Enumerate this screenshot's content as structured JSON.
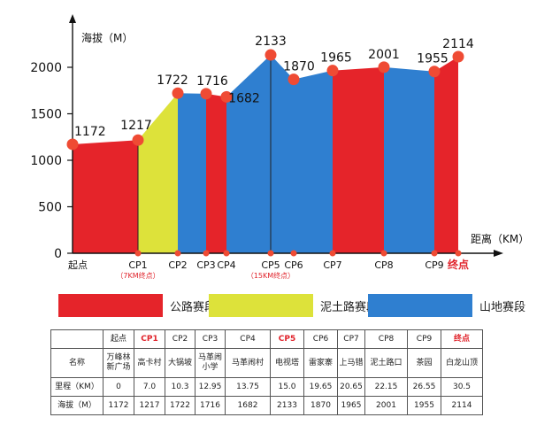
{
  "chart_data": {
    "type": "area",
    "ylabel": "海拔（M）",
    "xlabel": "距离（KM）",
    "ylim": [
      0,
      2300
    ],
    "yticks": [
      0,
      500,
      1000,
      1500,
      2000
    ],
    "points": [
      {
        "label": "起点",
        "km": 0,
        "alt": 1172,
        "hi": false,
        "note": ""
      },
      {
        "label": "CP1",
        "km": 7.0,
        "alt": 1217,
        "hi": false,
        "note": "（7KM终点）"
      },
      {
        "label": "CP2",
        "km": 10.3,
        "alt": 1722,
        "hi": false,
        "note": ""
      },
      {
        "label": "CP3",
        "km": 12.95,
        "alt": 1716,
        "hi": false,
        "note": ""
      },
      {
        "label": "CP4",
        "km": 13.75,
        "alt": 1682,
        "hi": false,
        "note": ""
      },
      {
        "label": "CP5",
        "km": 15.0,
        "alt": 2133,
        "hi": false,
        "note": "（15KM终点）"
      },
      {
        "label": "CP6",
        "km": 19.65,
        "alt": 1870,
        "hi": false,
        "note": ""
      },
      {
        "label": "CP7",
        "km": 20.65,
        "alt": 1965,
        "hi": false,
        "note": ""
      },
      {
        "label": "CP8",
        "km": 22.15,
        "alt": 2001,
        "hi": false,
        "note": ""
      },
      {
        "label": "CP9",
        "km": 26.55,
        "alt": 1955,
        "hi": false,
        "note": ""
      },
      {
        "label": "终点",
        "km": 30.5,
        "alt": 2114,
        "hi": true,
        "note": ""
      }
    ],
    "segments": [
      {
        "from": 0,
        "to": 1,
        "type": 0
      },
      {
        "from": 1,
        "to": 2,
        "type": 1
      },
      {
        "from": 2,
        "to": 3,
        "type": 2
      },
      {
        "from": 3,
        "to": 4,
        "type": 0
      },
      {
        "from": 4,
        "to": 5,
        "type": 2
      },
      {
        "from": 5,
        "to": 6,
        "type": 2
      },
      {
        "from": 6,
        "to": 7,
        "type": 2
      },
      {
        "from": 7,
        "to": 8,
        "type": 0
      },
      {
        "from": 8,
        "to": 9,
        "type": 2
      },
      {
        "from": 9,
        "to": 10,
        "type": 0
      }
    ]
  },
  "colors": {
    "road": "#e5242a",
    "dirt": "#dde23a",
    "mountain": "#2f7fd0",
    "marker": "#ef4b34",
    "highlight": "#e0222a"
  },
  "legend": [
    {
      "label": "公路赛段",
      "color": "#e5242a"
    },
    {
      "label": "泥土路赛段",
      "color": "#dde23a"
    },
    {
      "label": "山地赛段",
      "color": "#2f7fd0"
    }
  ],
  "table": {
    "header": [
      "",
      "起点",
      "CP1",
      "CP2",
      "CP3",
      "CP4",
      "CP5",
      "CP6",
      "CP7",
      "CP8",
      "CP9",
      "终点"
    ],
    "highlight_cols": [
      2,
      6,
      11
    ],
    "rows": [
      [
        "名称",
        "万峰林\n新广场",
        "高卡村",
        "大锅坡",
        "马革闹\n小学",
        "马革闹村",
        "电视塔",
        "雷家寨",
        "上马错",
        "泥土路口",
        "茶园",
        "白龙山顶"
      ],
      [
        "里程（KM）",
        "0",
        "7.0",
        "10.3",
        "12.95",
        "13.75",
        "15.0",
        "19.65",
        "20.65",
        "22.15",
        "26.55",
        "30.5"
      ],
      [
        "海拔（M）",
        "1172",
        "1217",
        "1722",
        "1716",
        "1682",
        "2133",
        "1870",
        "1965",
        "2001",
        "1955",
        "2114"
      ]
    ]
  }
}
